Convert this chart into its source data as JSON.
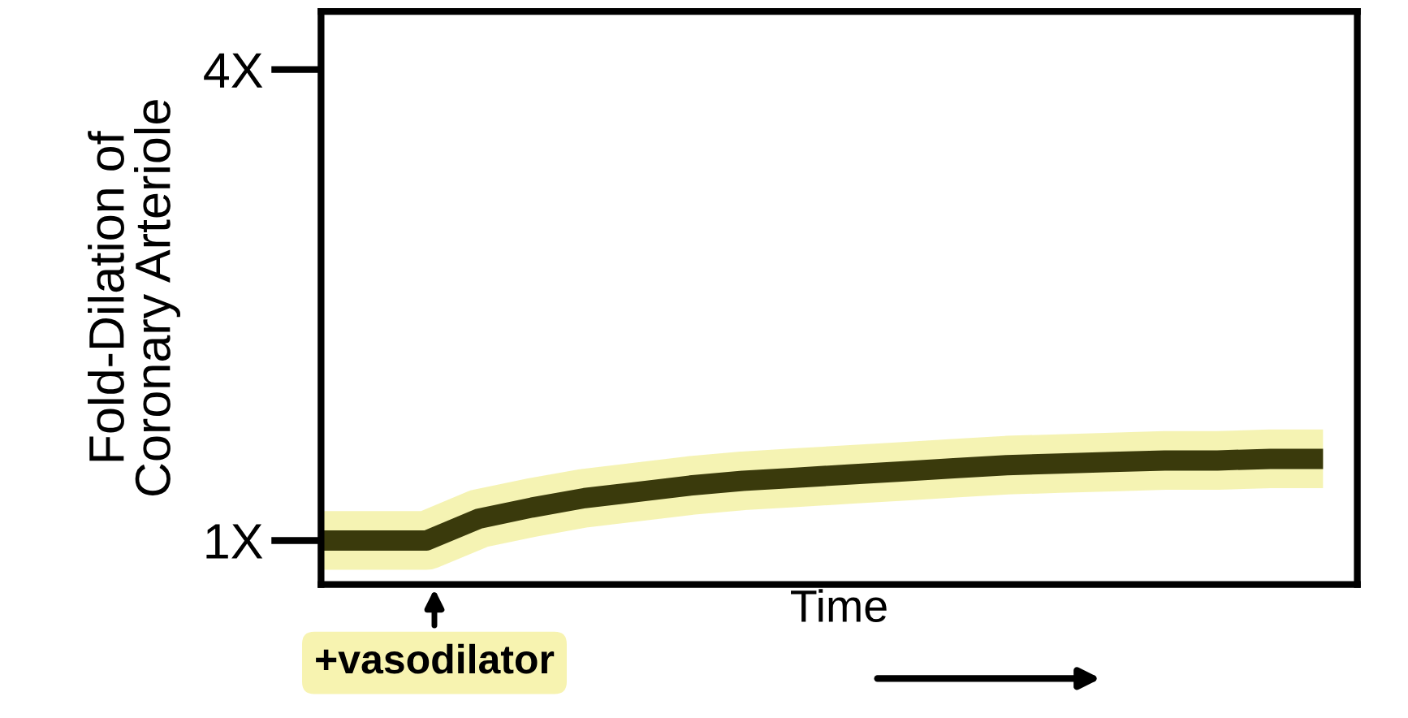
{
  "chart_data": {
    "type": "line",
    "ylabel": "Fold-Dilation of\nCoronary Arteriole",
    "xlabel": "Time",
    "categories": [
      null,
      null,
      null,
      null,
      null,
      null,
      null,
      null,
      null,
      null,
      null,
      null,
      null,
      null,
      null,
      null,
      null,
      null,
      null,
      null
    ],
    "series": [
      {
        "color": "#3a3a0c",
        "values": [
          1.0,
          1.0,
          1.0,
          1.14,
          1.21,
          1.27,
          1.31,
          1.35,
          1.38,
          1.4,
          1.42,
          1.44,
          1.46,
          1.48,
          1.49,
          1.5,
          1.51,
          1.51,
          1.52,
          1.52
        ]
      }
    ],
    "ylim": [
      0.72,
      4.37
    ],
    "yticks": [
      {
        "value": 1,
        "label": "1X"
      },
      {
        "value": 4,
        "label": "4X"
      }
    ],
    "tick_labels": "y",
    "annotations": [
      "+vasodilator"
    ],
    "grid": false,
    "legend": false,
    "marker": "none",
    "line_style": "solid"
  }
}
